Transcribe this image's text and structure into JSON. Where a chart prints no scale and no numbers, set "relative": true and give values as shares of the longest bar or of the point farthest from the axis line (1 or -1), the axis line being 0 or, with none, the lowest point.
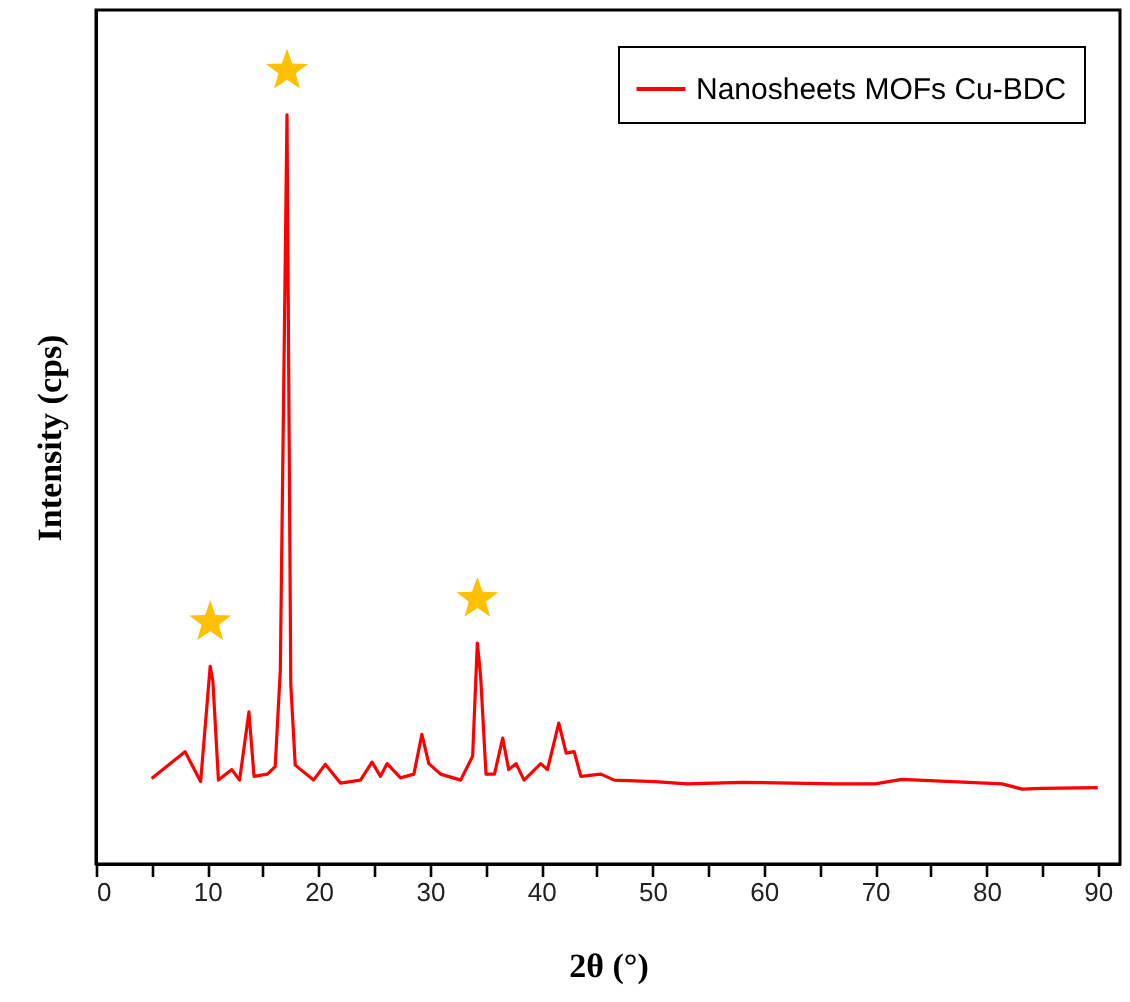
{
  "chart_data": {
    "type": "line",
    "xlabel": "2θ (°)",
    "ylabel": "Intensity (cps)",
    "relative": true,
    "xlim": [
      0,
      92
    ],
    "xticks": [
      0,
      {
        "value": 5,
        "label": null
      },
      10,
      {
        "value": 15,
        "label": null
      },
      20,
      {
        "value": 25,
        "label": null
      },
      30,
      {
        "value": 35,
        "label": null
      },
      40,
      {
        "value": 45,
        "label": null
      },
      50,
      {
        "value": 55,
        "label": null
      },
      60,
      {
        "value": 65,
        "label": null
      },
      70,
      {
        "value": 75,
        "label": null
      },
      80,
      {
        "value": 85,
        "label": null
      },
      90
    ],
    "x": [
      5.0,
      8.0,
      9.4,
      10.26,
      10.5,
      11.0,
      12.2,
      12.9,
      13.74,
      14.2,
      15.4,
      16.1,
      16.56,
      17.16,
      17.5,
      17.9,
      19.55,
      20.6,
      21.96,
      23.76,
      24.8,
      25.56,
      26.16,
      27.36,
      28.56,
      29.28,
      29.9,
      30.96,
      32.76,
      33.84,
      34.26,
      34.56,
      35.04,
      35.8,
      36.54,
      37.08,
      37.74,
      38.46,
      39.96,
      40.56,
      41.58,
      42.24,
      42.96,
      43.56,
      45.36,
      46.56,
      50.2,
      53.1,
      58.0,
      66.4,
      70.0,
      72.4,
      81.4,
      83.2,
      85.0,
      90.0
    ],
    "series": [
      {
        "name": "Nanosheets MOFs Cu-BDC",
        "color": "#ff0000",
        "values": [
          0.114,
          0.15,
          0.11,
          0.264,
          0.244,
          0.112,
          0.126,
          0.112,
          0.203,
          0.117,
          0.12,
          0.13,
          0.259,
          1.0,
          0.24,
          0.132,
          0.112,
          0.133,
          0.108,
          0.112,
          0.136,
          0.117,
          0.134,
          0.115,
          0.12,
          0.173,
          0.134,
          0.12,
          0.112,
          0.144,
          0.295,
          0.25,
          0.12,
          0.12,
          0.168,
          0.126,
          0.134,
          0.112,
          0.134,
          0.126,
          0.188,
          0.148,
          0.15,
          0.117,
          0.12,
          0.112,
          0.11,
          0.107,
          0.109,
          0.107,
          0.107,
          0.113,
          0.107,
          0.1,
          0.101,
          0.102
        ]
      }
    ],
    "legend": "top right",
    "marker": "none",
    "tick_labels": "x"
  }
}
